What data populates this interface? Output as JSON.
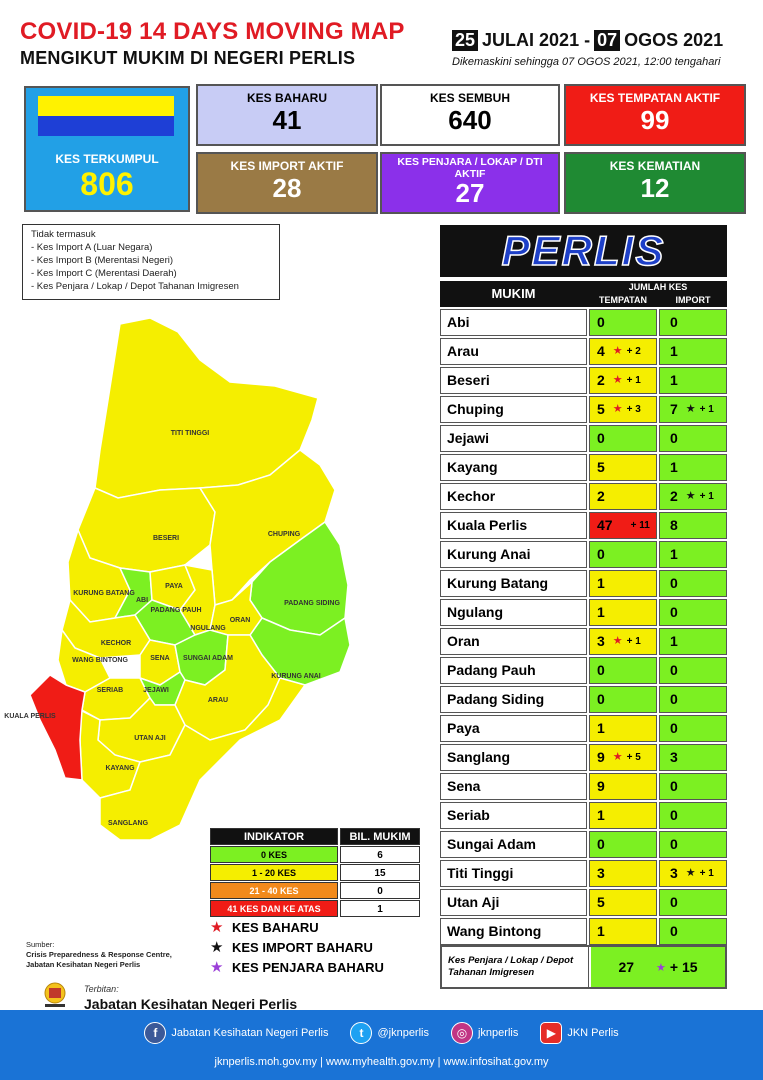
{
  "header": {
    "title": "COVID-19 14 DAYS MOVING MAP",
    "subtitle": "MENGIKUT MUKIM DI NEGERI PERLIS",
    "date_start_day": "25",
    "date_start_rest": "JULAI 2021 -",
    "date_end_day": "07",
    "date_end_rest": "OGOS 2021",
    "updated": "Dikemaskini sehingga  07 OGOS  2021, 12:00 tengahari"
  },
  "cards": {
    "terkumpul": {
      "label": "KES TERKUMPUL",
      "value": "806",
      "color": "#22a0e6"
    },
    "baharu": {
      "label": "KES BAHARU",
      "value": "41",
      "color": "#c8ccf5"
    },
    "sembuh": {
      "label": "KES SEMBUH",
      "value": "640",
      "color": "#ffffff"
    },
    "tempatan_aktif": {
      "label": "KES TEMPATAN AKTIF",
      "value": "99",
      "color": "#f01c16"
    },
    "import_aktif": {
      "label": "KES IMPORT AKTIF",
      "value": "28",
      "color": "#9a7a45"
    },
    "penjara_aktif": {
      "label": "KES PENJARA / LOKAP / DTI AKTIF",
      "value": "27",
      "color": "#8b30ea"
    },
    "kematian": {
      "label": "KES KEMATIAN",
      "value": "12",
      "color": "#1f8a33"
    }
  },
  "flag_colors": [
    "#fff200",
    "#1e3fd6"
  ],
  "note": {
    "title": "Tidak termasuk",
    "items": [
      "- Kes Import A (Luar Negara)",
      "- Kes Import B (Merentasi Negeri)",
      "- Kes Import C (Merentasi Daerah)",
      "- Kes Penjara / Lokap / Depot Tahanan Imigresen"
    ]
  },
  "table": {
    "state": "PERLIS",
    "col_mukim": "MUKIM",
    "col_jumlah": "JUMLAH KES",
    "col_tempatan": "TEMPATAN",
    "col_import": "IMPORT",
    "rows": [
      {
        "name": "Abi",
        "tempatan": "0",
        "t_add": "",
        "import": "0",
        "i_add": "",
        "tcolor": "#7cf022",
        "icolor": "#7cf022"
      },
      {
        "name": "Arau",
        "tempatan": "4",
        "t_add": "+ 2",
        "import": "1",
        "i_add": "",
        "tcolor": "#f5ee00",
        "icolor": "#7cf022"
      },
      {
        "name": "Beseri",
        "tempatan": "2",
        "t_add": "+ 1",
        "import": "1",
        "i_add": "",
        "tcolor": "#f5ee00",
        "icolor": "#7cf022"
      },
      {
        "name": "Chuping",
        "tempatan": "5",
        "t_add": "+ 3",
        "import": "7",
        "i_add": "+ 1",
        "tcolor": "#f5ee00",
        "icolor": "#7cf022"
      },
      {
        "name": "Jejawi",
        "tempatan": "0",
        "t_add": "",
        "import": "0",
        "i_add": "",
        "tcolor": "#7cf022",
        "icolor": "#7cf022"
      },
      {
        "name": "Kayang",
        "tempatan": "5",
        "t_add": "",
        "import": "1",
        "i_add": "",
        "tcolor": "#f5ee00",
        "icolor": "#7cf022"
      },
      {
        "name": "Kechor",
        "tempatan": "2",
        "t_add": "",
        "import": "2",
        "i_add": "+ 1",
        "tcolor": "#f5ee00",
        "icolor": "#7cf022"
      },
      {
        "name": "Kuala Perlis",
        "tempatan": "47",
        "t_add": "+ 11",
        "import": "8",
        "i_add": "",
        "tcolor": "#f01c16",
        "icolor": "#7cf022"
      },
      {
        "name": "Kurung Anai",
        "tempatan": "0",
        "t_add": "",
        "import": "1",
        "i_add": "",
        "tcolor": "#7cf022",
        "icolor": "#7cf022"
      },
      {
        "name": "Kurung Batang",
        "tempatan": "1",
        "t_add": "",
        "import": "0",
        "i_add": "",
        "tcolor": "#f5ee00",
        "icolor": "#7cf022"
      },
      {
        "name": "Ngulang",
        "tempatan": "1",
        "t_add": "",
        "import": "0",
        "i_add": "",
        "tcolor": "#f5ee00",
        "icolor": "#7cf022"
      },
      {
        "name": "Oran",
        "tempatan": "3",
        "t_add": "+ 1",
        "import": "1",
        "i_add": "",
        "tcolor": "#f5ee00",
        "icolor": "#7cf022"
      },
      {
        "name": "Padang Pauh",
        "tempatan": "0",
        "t_add": "",
        "import": "0",
        "i_add": "",
        "tcolor": "#7cf022",
        "icolor": "#7cf022"
      },
      {
        "name": "Padang Siding",
        "tempatan": "0",
        "t_add": "",
        "import": "0",
        "i_add": "",
        "tcolor": "#7cf022",
        "icolor": "#7cf022"
      },
      {
        "name": "Paya",
        "tempatan": "1",
        "t_add": "",
        "import": "0",
        "i_add": "",
        "tcolor": "#f5ee00",
        "icolor": "#7cf022"
      },
      {
        "name": "Sanglang",
        "tempatan": "9",
        "t_add": "+ 5",
        "import": "3",
        "i_add": "",
        "tcolor": "#f5ee00",
        "icolor": "#7cf022"
      },
      {
        "name": "Sena",
        "tempatan": "9",
        "t_add": "",
        "import": "0",
        "i_add": "",
        "tcolor": "#f5ee00",
        "icolor": "#7cf022"
      },
      {
        "name": "Seriab",
        "tempatan": "1",
        "t_add": "",
        "import": "0",
        "i_add": "",
        "tcolor": "#f5ee00",
        "icolor": "#7cf022"
      },
      {
        "name": "Sungai Adam",
        "tempatan": "0",
        "t_add": "",
        "import": "0",
        "i_add": "",
        "tcolor": "#7cf022",
        "icolor": "#7cf022"
      },
      {
        "name": "Titi Tinggi",
        "tempatan": "3",
        "t_add": "",
        "import": "3",
        "i_add": "+ 1",
        "tcolor": "#f5ee00",
        "icolor": "#f5ee00"
      },
      {
        "name": "Utan Aji",
        "tempatan": "5",
        "t_add": "",
        "import": "0",
        "i_add": "",
        "tcolor": "#f5ee00",
        "icolor": "#7cf022"
      },
      {
        "name": "Wang Bintong",
        "tempatan": "1",
        "t_add": "",
        "import": "0",
        "i_add": "",
        "tcolor": "#f5ee00",
        "icolor": "#7cf022"
      }
    ],
    "penjara_label": "Kes Penjara / Lokap / Depot Tahanan Imigresen",
    "penjara_value": "27",
    "penjara_add": "+ 15"
  },
  "map_labels": {
    "titi_tinggi": "TITI TINGGI",
    "beseri": "BESERI",
    "chuping": "CHUPING",
    "kurung_batang": "KURUNG BATANG",
    "abi": "ABI",
    "paya": "PAYA",
    "padang_pauh": "PADANG PAUH",
    "ngulang": "NGULANG",
    "oran": "ORAN",
    "padang_siding": "PADANG SIDING",
    "kechor": "KECHOR",
    "wang_bintong": "WANG BINTONG",
    "sena": "SENA",
    "sungai_adam": "SUNGAI ADAM",
    "kurung_anai": "KURUNG ANAI",
    "seriab": "SERIAB",
    "jejawi": "JEJAWI",
    "arau": "ARAU",
    "kuala_perlis": "KUALA PERLIS",
    "utan_aji": "UTAN AJI",
    "kayang": "KAYANG",
    "sanglang": "SANGLANG"
  },
  "indicator": {
    "col1": "INDIKATOR",
    "col2": "BIL. MUKIM",
    "rows": [
      {
        "label": "0 KES",
        "count": "6",
        "color": "#7cf022"
      },
      {
        "label": "1 - 20 KES",
        "count": "15",
        "color": "#f5ee00"
      },
      {
        "label": "21 - 40 KES",
        "count": "0",
        "color": "#f28a1c"
      },
      {
        "label": "41 KES DAN KE ATAS",
        "count": "1",
        "color": "#f01c16"
      }
    ]
  },
  "legend": [
    {
      "label": "KES BAHARU",
      "color": "#e01b24"
    },
    {
      "label": "KES IMPORT BAHARU",
      "color": "#111111"
    },
    {
      "label": "KES PENJARA BAHARU",
      "color": "#9b3fd8"
    }
  ],
  "source": {
    "label": "Sumber:",
    "line1": "Crisis Preparedness & Response Centre,",
    "line2": "Jabatan Kesihatan Negeri Perlis"
  },
  "publisher": {
    "label": "Terbitan:",
    "name": "Jabatan Kesihatan Negeri Perlis"
  },
  "footer": {
    "facebook": "Jabatan Kesihatan Negeri Perlis",
    "twitter": "@jknperlis",
    "instagram": "jknperlis",
    "youtube": "JKN Perlis",
    "websites": "jknperlis.moh.gov.my  |  www.myhealth.gov.my  |  www.infosihat.gov.my"
  }
}
